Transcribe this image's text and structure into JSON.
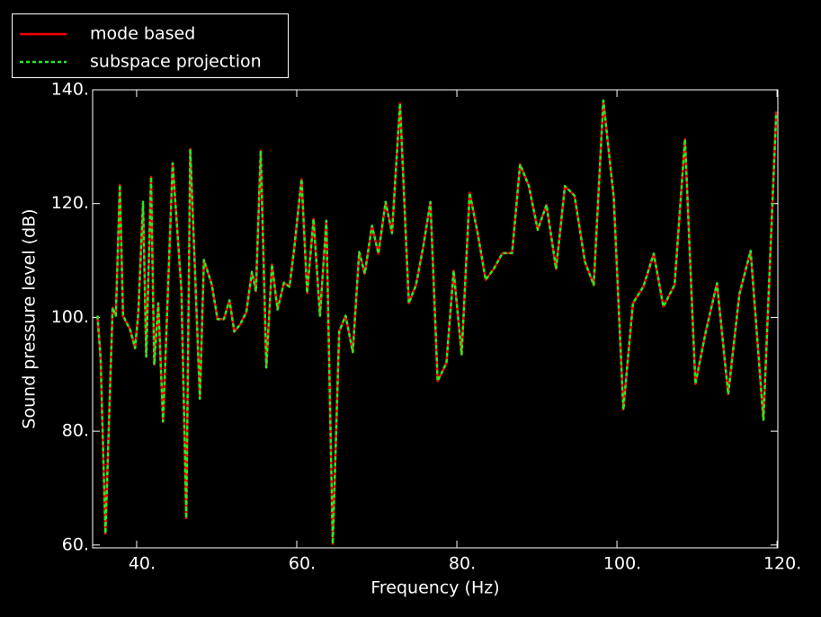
{
  "chart_data": {
    "type": "line",
    "x_label": "Frequency (Hz)",
    "y_label": "Sound pressure level (dB)",
    "xlim": [
      34.5,
      120.1
    ],
    "ylim": [
      59.5,
      140
    ],
    "xticks": [
      {
        "value": 40,
        "label": "40."
      },
      {
        "value": 60,
        "label": "60."
      },
      {
        "value": 80,
        "label": "80."
      },
      {
        "value": 100,
        "label": "100."
      },
      {
        "value": 120,
        "label": "120."
      }
    ],
    "yticks": [
      {
        "value": 60,
        "label": "60."
      },
      {
        "value": 80,
        "label": "80."
      },
      {
        "value": 100,
        "label": "100."
      },
      {
        "value": 120,
        "label": "120."
      },
      {
        "value": 140,
        "label": "140."
      }
    ],
    "legend": "upper left",
    "x": [
      35.1,
      35.5,
      36.1,
      37,
      37.4,
      37.9,
      38.3,
      39.2,
      39.8,
      40.2,
      40.8,
      41.2,
      41.8,
      42.2,
      42.7,
      43.3,
      44.5,
      45.6,
      46.2,
      46.7,
      47.9,
      48.4,
      49.4,
      50.1,
      50.9,
      51.6,
      52.2,
      52.9,
      53.7,
      54.4,
      54.9,
      55.5,
      56.2,
      56.9,
      57.6,
      58.4,
      59.1,
      59.7,
      60.6,
      61.3,
      62.1,
      62.9,
      63.7,
      64.5,
      65.3,
      66.1,
      67,
      67.8,
      68.5,
      69.4,
      70.2,
      71.1,
      71.9,
      72.9,
      74,
      74.9,
      75.8,
      76.7,
      77.6,
      78.7,
      79.6,
      80.6,
      81.6,
      82.6,
      83.6,
      84.6,
      85.7,
      86.9,
      87.9,
      89,
      90.1,
      91.2,
      92.4,
      93.5,
      94.7,
      96,
      97.1,
      98.3,
      99.6,
      100.8,
      102,
      103.3,
      104.6,
      105.8,
      107.2,
      108.5,
      109.8,
      111.1,
      112.5,
      113.9,
      115.3,
      116.7,
      118.3,
      119.9
    ],
    "series": [
      {
        "name": "mode based",
        "color": "#ff0000",
        "dash": false,
        "values": [
          100.3,
          92.8,
          62,
          101.7,
          100.3,
          123.3,
          100.3,
          97.8,
          94.6,
          100.6,
          120.3,
          93.1,
          124.7,
          91.7,
          102.5,
          81.7,
          127.1,
          104.6,
          64.7,
          129.6,
          85.7,
          110.1,
          105.7,
          99.7,
          99.7,
          103,
          97.5,
          98.7,
          100.9,
          108,
          104.6,
          129.3,
          91.2,
          109.3,
          101.4,
          106.1,
          105.4,
          112.3,
          124.3,
          104.3,
          117.3,
          100.3,
          117,
          60.2,
          97.5,
          100.3,
          93.9,
          111.5,
          107.7,
          116.1,
          111.2,
          120.3,
          114.8,
          137.6,
          102.5,
          105.7,
          112.4,
          120.3,
          88.8,
          92,
          108.2,
          93.5,
          121.9,
          114.8,
          106.6,
          108.5,
          111.3,
          111.3,
          126.9,
          123.1,
          115.4,
          119.8,
          108.5,
          123.1,
          121.4,
          109.8,
          105.7,
          138.1,
          121.1,
          83.8,
          102.5,
          105.4,
          111.2,
          101.9,
          105.7,
          131.3,
          88.3,
          97.5,
          106,
          86.5,
          104.1,
          111.7,
          82,
          136.1
        ]
      },
      {
        "name": "subspace projection",
        "color": "#22ee22",
        "dash": true,
        "values": [
          100.3,
          92.8,
          62,
          101.7,
          100.3,
          123.3,
          100.3,
          97.8,
          94.6,
          100.6,
          120.3,
          93.1,
          124.7,
          91.7,
          102.5,
          81.7,
          127.1,
          104.6,
          64.7,
          129.6,
          85.7,
          110.1,
          105.7,
          99.7,
          99.7,
          103,
          97.5,
          98.7,
          100.9,
          108,
          104.6,
          129.3,
          91.2,
          109.3,
          101.4,
          106.1,
          105.4,
          112.3,
          124.3,
          104.3,
          117.3,
          100.3,
          117,
          60.2,
          97.5,
          100.3,
          93.9,
          111.5,
          107.7,
          116.1,
          111.2,
          120.3,
          114.8,
          137.6,
          102.5,
          105.7,
          112.4,
          120.3,
          88.8,
          92,
          108.2,
          93.5,
          121.9,
          114.8,
          106.6,
          108.5,
          111.3,
          111.3,
          126.9,
          123.1,
          115.4,
          119.8,
          108.5,
          123.1,
          121.4,
          109.8,
          105.7,
          138.1,
          121.1,
          83.8,
          102.5,
          105.4,
          111.2,
          101.9,
          105.7,
          131.3,
          88.3,
          97.5,
          106,
          86.5,
          104.1,
          111.7,
          82,
          136.1
        ]
      }
    ]
  }
}
